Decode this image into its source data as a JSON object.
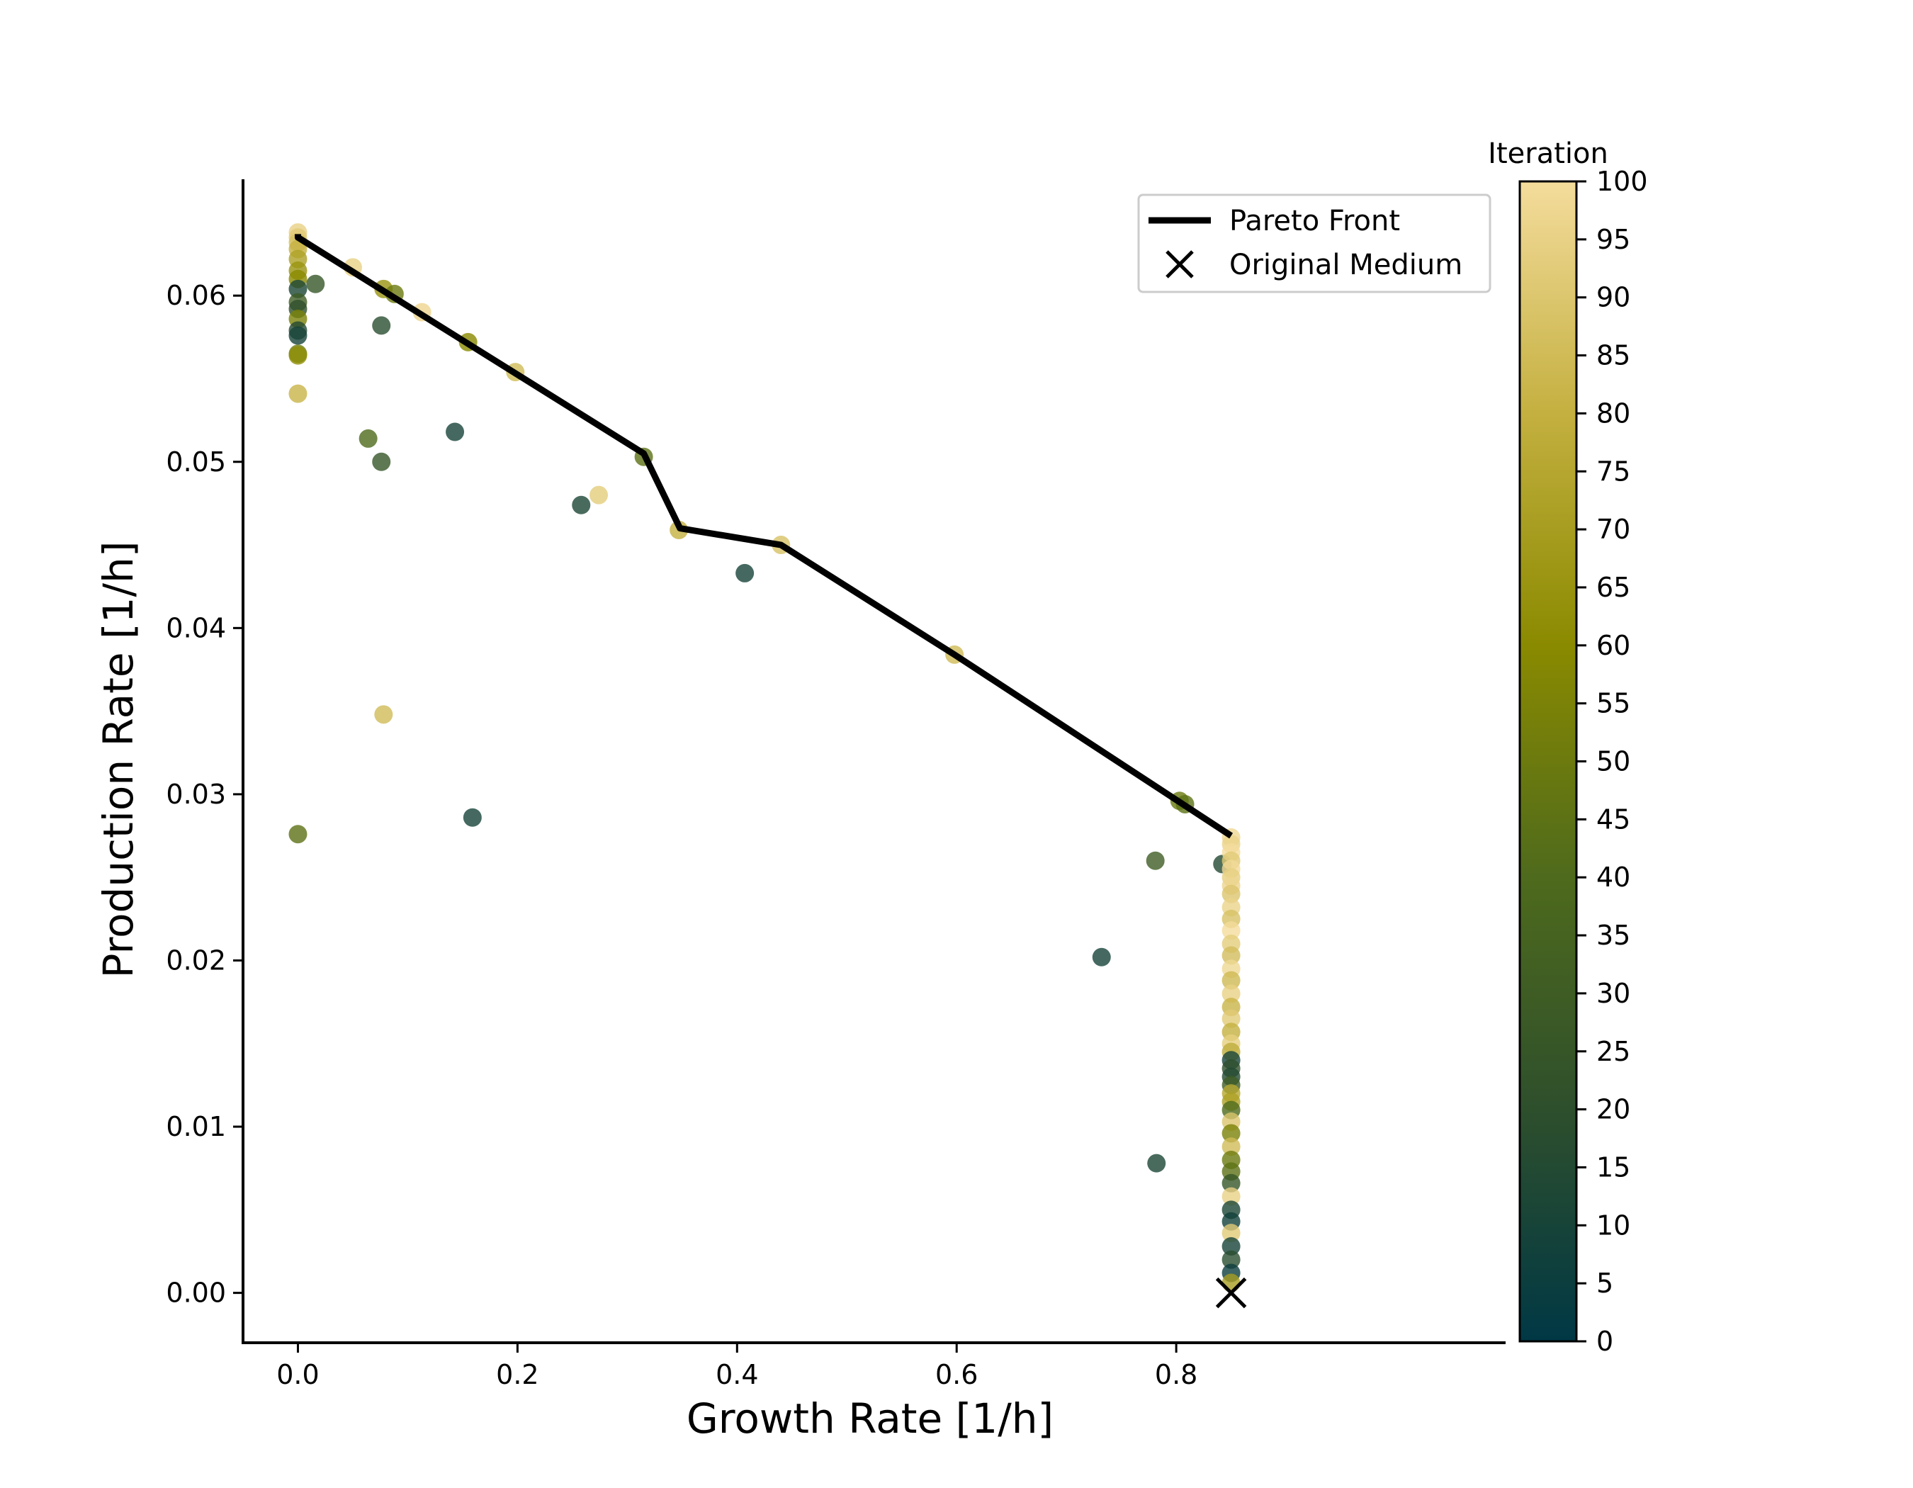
{
  "chart_data": {
    "type": "scatter",
    "xlabel": "Growth Rate [1/h]",
    "ylabel": "Production Rate [1/h]",
    "xlim": [
      -0.05,
      1.1
    ],
    "ylim": [
      -0.003,
      0.067
    ],
    "xticks": [
      "0.0",
      "0.2",
      "0.4",
      "0.6",
      "0.8"
    ],
    "yticks": [
      "0.00",
      "0.01",
      "0.02",
      "0.03",
      "0.04",
      "0.05",
      "0.06"
    ],
    "grid": false,
    "legend": {
      "placement": "upper-right",
      "entries": [
        "Pareto Front",
        "Original Medium"
      ]
    },
    "colorbar": {
      "title": "Iteration",
      "min": 0,
      "max": 100,
      "ticks": [
        "0",
        "5",
        "10",
        "15",
        "20",
        "25",
        "30",
        "35",
        "40",
        "45",
        "50",
        "55",
        "60",
        "65",
        "70",
        "75",
        "80",
        "85",
        "90",
        "95",
        "100"
      ],
      "colormap": [
        "#003845",
        "#2e4f2c",
        "#4e6a1c",
        "#8a8a00",
        "#c4b040",
        "#f4dc9c"
      ]
    },
    "pareto_front": {
      "name": "Pareto Front",
      "color": "#000000",
      "x": [
        0.0,
        0.0,
        0.315,
        0.348,
        0.44,
        0.598,
        0.85
      ],
      "y": [
        0.0637,
        0.0635,
        0.0505,
        0.046,
        0.045,
        0.0384,
        0.0275
      ]
    },
    "original_medium": {
      "name": "Original Medium",
      "x": 0.85,
      "y": 0.0
    },
    "points": [
      [
        0.0,
        0.0638,
        95
      ],
      [
        0.0,
        0.0635,
        92
      ],
      [
        0.0,
        0.0632,
        88
      ],
      [
        0.0,
        0.0628,
        80
      ],
      [
        0.0,
        0.0622,
        72
      ],
      [
        0.0,
        0.0615,
        65
      ],
      [
        0.0,
        0.061,
        60
      ],
      [
        0.0,
        0.0604,
        12
      ],
      [
        0.0,
        0.0596,
        30
      ],
      [
        0.0,
        0.0592,
        20
      ],
      [
        0.0,
        0.0586,
        55
      ],
      [
        0.0,
        0.0579,
        15
      ],
      [
        0.0,
        0.0576,
        10
      ],
      [
        0.0,
        0.0565,
        50
      ],
      [
        0.0,
        0.0564,
        62
      ],
      [
        0.0,
        0.0541,
        82
      ],
      [
        0.0,
        0.0276,
        45
      ],
      [
        0.016,
        0.0607,
        25
      ],
      [
        0.05,
        0.0617,
        95
      ],
      [
        0.078,
        0.0604,
        65
      ],
      [
        0.088,
        0.0601,
        50
      ],
      [
        0.076,
        0.0582,
        18
      ],
      [
        0.113,
        0.059,
        97
      ],
      [
        0.155,
        0.0572,
        60
      ],
      [
        0.198,
        0.0554,
        85
      ],
      [
        0.064,
        0.0514,
        40
      ],
      [
        0.076,
        0.05,
        25
      ],
      [
        0.143,
        0.0518,
        10
      ],
      [
        0.258,
        0.0474,
        12
      ],
      [
        0.274,
        0.048,
        93
      ],
      [
        0.315,
        0.0503,
        45
      ],
      [
        0.347,
        0.0459,
        80
      ],
      [
        0.44,
        0.045,
        88
      ],
      [
        0.407,
        0.0433,
        10
      ],
      [
        0.598,
        0.0384,
        85
      ],
      [
        0.078,
        0.0348,
        85
      ],
      [
        0.159,
        0.0286,
        10
      ],
      [
        0.803,
        0.0296,
        50
      ],
      [
        0.808,
        0.0294,
        45
      ],
      [
        0.781,
        0.026,
        30
      ],
      [
        0.842,
        0.0258,
        15
      ],
      [
        0.732,
        0.0202,
        10
      ],
      [
        0.782,
        0.0078,
        12
      ],
      [
        0.85,
        0.0274,
        98
      ],
      [
        0.85,
        0.027,
        96
      ],
      [
        0.85,
        0.0265,
        100
      ],
      [
        0.85,
        0.026,
        92
      ],
      [
        0.85,
        0.0255,
        99
      ],
      [
        0.85,
        0.025,
        94
      ],
      [
        0.85,
        0.0245,
        97
      ],
      [
        0.85,
        0.024,
        90
      ],
      [
        0.85,
        0.0232,
        96
      ],
      [
        0.85,
        0.0225,
        88
      ],
      [
        0.85,
        0.0218,
        100
      ],
      [
        0.85,
        0.021,
        93
      ],
      [
        0.85,
        0.0203,
        86
      ],
      [
        0.85,
        0.0195,
        98
      ],
      [
        0.85,
        0.0188,
        84
      ],
      [
        0.85,
        0.018,
        95
      ],
      [
        0.85,
        0.0172,
        82
      ],
      [
        0.85,
        0.0165,
        92
      ],
      [
        0.85,
        0.0157,
        80
      ],
      [
        0.85,
        0.015,
        94
      ],
      [
        0.85,
        0.0145,
        78
      ],
      [
        0.85,
        0.014,
        10
      ],
      [
        0.85,
        0.0135,
        20
      ],
      [
        0.85,
        0.013,
        15
      ],
      [
        0.85,
        0.0125,
        30
      ],
      [
        0.85,
        0.012,
        75
      ],
      [
        0.85,
        0.0115,
        72
      ],
      [
        0.85,
        0.011,
        40
      ],
      [
        0.85,
        0.0103,
        90
      ],
      [
        0.85,
        0.0096,
        55
      ],
      [
        0.85,
        0.0088,
        85
      ],
      [
        0.85,
        0.008,
        50
      ],
      [
        0.85,
        0.0073,
        45
      ],
      [
        0.85,
        0.0066,
        25
      ],
      [
        0.85,
        0.0058,
        95
      ],
      [
        0.85,
        0.005,
        12
      ],
      [
        0.85,
        0.0043,
        8
      ],
      [
        0.85,
        0.0036,
        92
      ],
      [
        0.85,
        0.0028,
        10
      ],
      [
        0.85,
        0.002,
        18
      ],
      [
        0.85,
        0.0012,
        5
      ],
      [
        0.85,
        0.0006,
        70
      ]
    ]
  }
}
